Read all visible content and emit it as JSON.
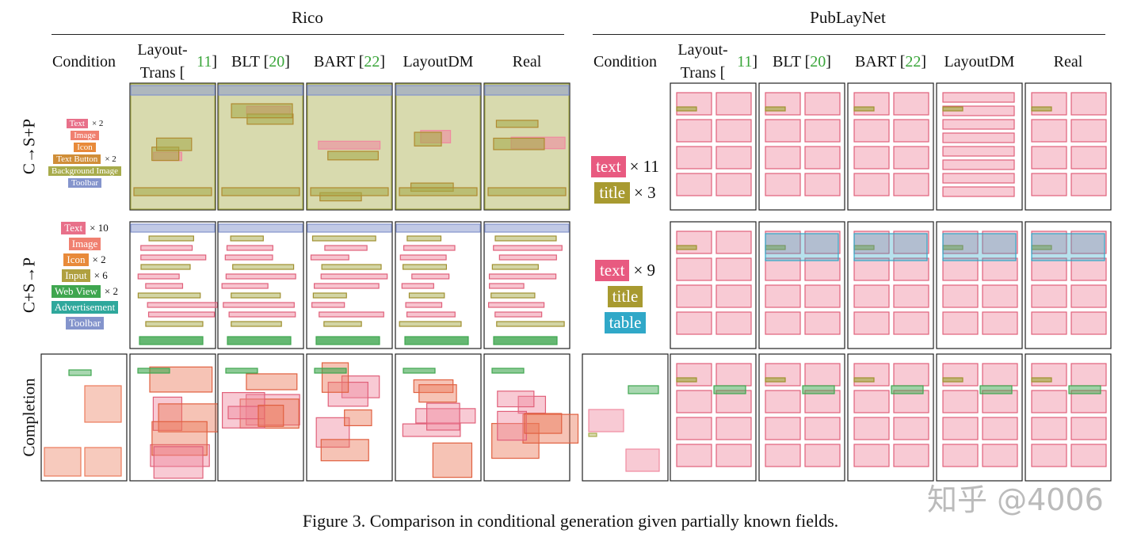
{
  "header": {
    "groups": [
      "Rico",
      "PubLayNet"
    ],
    "condition_label": "Condition",
    "columns": [
      [
        "Layout-Trans [",
        "11",
        "]"
      ],
      [
        "BLT [",
        "20",
        "]"
      ],
      [
        "BART [",
        "22",
        "]"
      ],
      [
        "LayoutDM"
      ],
      [
        "Real"
      ]
    ],
    "cite_color": "#3aa53a"
  },
  "rows": [
    "C→S+P",
    "C+S→P",
    "Completion"
  ],
  "rico_conditions": [
    [
      {
        "label": "Text",
        "count": "× 2",
        "color": "#e8708a"
      },
      {
        "label": "Image",
        "color": "#f08070"
      },
      {
        "label": "Icon",
        "color": "#e88a3a"
      },
      {
        "label": "Text Button",
        "count": "× 2",
        "color": "#d08e38"
      },
      {
        "label": "Background Image",
        "color": "#a8ac4c"
      },
      {
        "label": "Toolbar",
        "color": "#8494cc"
      }
    ],
    [
      {
        "label": "Text",
        "count": "× 10",
        "color": "#e8708a"
      },
      {
        "label": "Image",
        "color": "#f08070"
      },
      {
        "label": "Icon",
        "count": "× 2",
        "color": "#e88a3a"
      },
      {
        "label": "Input",
        "count": "× 6",
        "color": "#b0a040"
      },
      {
        "label": "Web View",
        "count": "× 2",
        "color": "#3fa64f"
      },
      {
        "label": "Advertisement",
        "color": "#2fa89c"
      },
      {
        "label": "Toolbar",
        "color": "#8494cc"
      }
    ]
  ],
  "publaynet_conditions": [
    [
      {
        "label": "text",
        "count": "× 11",
        "color": "#e85a80"
      },
      {
        "label": "title",
        "count": "× 3",
        "color": "#a89a30"
      }
    ],
    [
      {
        "label": "text",
        "count": "× 9",
        "color": "#e85a80"
      },
      {
        "label": "title",
        "color": "#a89a30"
      },
      {
        "label": "table",
        "color": "#30a8c8"
      }
    ]
  ],
  "caption": "Figure 3. Comparison in conditional generation given partially known fields.",
  "watermark": "知乎 @4006"
}
